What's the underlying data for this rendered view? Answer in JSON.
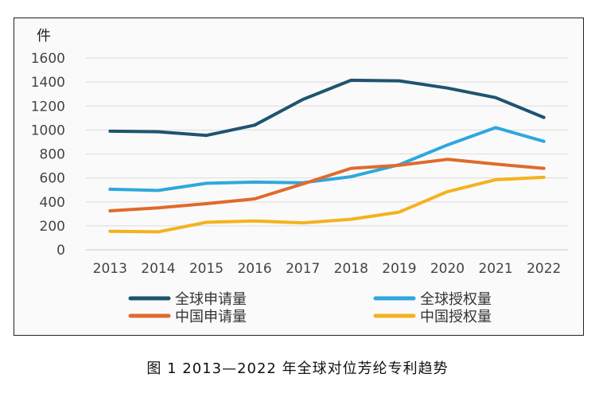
{
  "chart_data": {
    "type": "line",
    "unit_label": "件",
    "categories": [
      "2013",
      "2014",
      "2015",
      "2016",
      "2017",
      "2018",
      "2019",
      "2020",
      "2021",
      "2022"
    ],
    "ylim": [
      0,
      1600
    ],
    "yticks": [
      0,
      200,
      400,
      600,
      800,
      1000,
      1200,
      1400,
      1600
    ],
    "grid": true,
    "legend_position": "bottom",
    "series": [
      {
        "name": "全球申请量",
        "color": "#1e5470",
        "values": [
          990,
          985,
          955,
          1040,
          1255,
          1415,
          1410,
          1350,
          1270,
          1105
        ]
      },
      {
        "name": "全球授权量",
        "color": "#2ea8de",
        "values": [
          505,
          495,
          555,
          565,
          560,
          610,
          710,
          875,
          1020,
          905
        ]
      },
      {
        "name": "中国申请量",
        "color": "#e06a2c",
        "values": [
          325,
          350,
          385,
          425,
          550,
          680,
          705,
          755,
          715,
          680
        ]
      },
      {
        "name": "中国授权量",
        "color": "#f5b21d",
        "values": [
          155,
          150,
          230,
          240,
          225,
          255,
          315,
          485,
          585,
          605
        ]
      }
    ]
  },
  "caption": "图 1 2013—2022 年全球对位芳纶专利趋势"
}
